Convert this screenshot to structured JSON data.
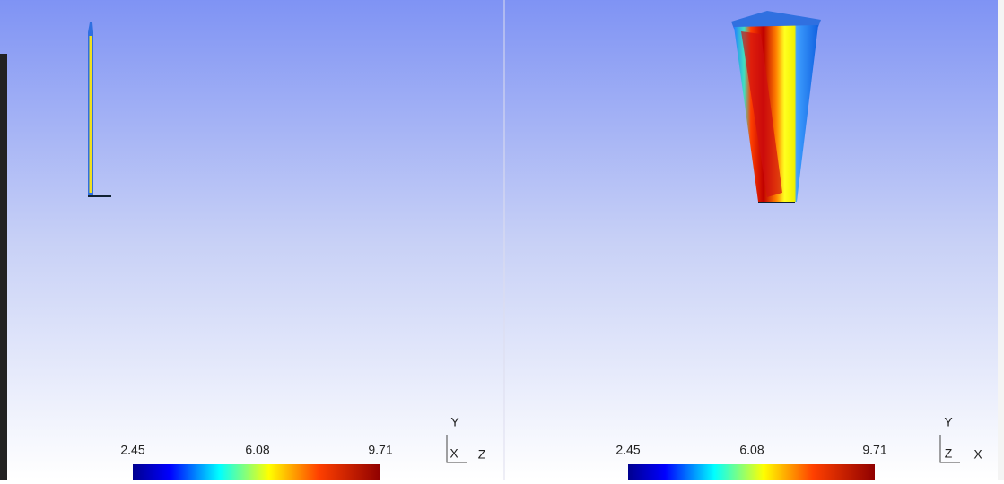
{
  "viewports": [
    {
      "colorbar": {
        "labels": [
          "2.45",
          "6.08",
          "9.71"
        ]
      },
      "axes": {
        "up": "Y",
        "left": "X",
        "right": "Z"
      }
    },
    {
      "colorbar": {
        "labels": [
          "2.45",
          "6.08",
          "9.71"
        ]
      },
      "axes": {
        "up": "Y",
        "left": "Z",
        "right": "X"
      }
    }
  ]
}
